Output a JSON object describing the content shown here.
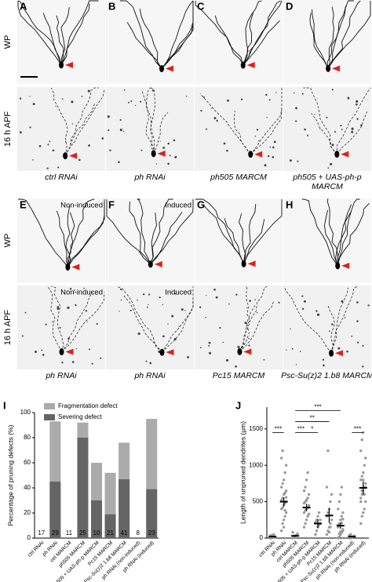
{
  "figure": {
    "blocks": [
      {
        "rows": [
          "WP",
          "16 h APF"
        ],
        "panels": [
          {
            "letter": "A",
            "caption": [
              "ctrl RNAi"
            ]
          },
          {
            "letter": "B",
            "caption": [
              "ph RNAi"
            ]
          },
          {
            "letter": "C",
            "caption": [
              "ph505 MARCM"
            ]
          },
          {
            "letter": "D",
            "caption": [
              "ph505 + UAS-ph-p",
              "MARCM"
            ]
          }
        ]
      },
      {
        "rows": [
          "WP",
          "16 h APF"
        ],
        "panels": [
          {
            "letter": "E",
            "notes": [
              "Non-induced",
              "Non-induced"
            ],
            "caption": [
              "ph RNAi"
            ]
          },
          {
            "letter": "F",
            "notes": [
              "Induced",
              "Induced"
            ],
            "caption": [
              "ph RNAi"
            ]
          },
          {
            "letter": "G",
            "caption": [
              "Pc15 MARCM"
            ]
          },
          {
            "letter": "H",
            "caption": [
              "Psc-Su(z)2 1.b8 MARCM"
            ]
          }
        ]
      }
    ]
  },
  "chart_data": [
    {
      "type": "stacked-bar",
      "panel": "I",
      "categories": [
        "ctrl RNAi",
        "ph RNAi",
        "ctrl MARCM",
        "ph505 MARCM",
        "ph505 + UAS-ph-p MARCM",
        "Pc15 MARCM",
        "Psc-Su(z)2 1.b8 MARCM",
        "ph RNAi (non-induced)",
        "ph RNAi (induced)"
      ],
      "series": [
        {
          "name": "Fragmentation defect",
          "color": "#ababab",
          "values": [
            0,
            48,
            0,
            12,
            30,
            33,
            29,
            0,
            56
          ]
        },
        {
          "name": "Severing defect",
          "color": "#656565",
          "values": [
            0,
            45,
            0,
            80,
            30,
            19,
            47,
            0,
            39
          ]
        }
      ],
      "n": [
        17,
        29,
        11,
        25,
        10,
        21,
        41,
        8,
        23
      ],
      "ylabel": "Percentage of pruning defects (%)",
      "ylim": [
        0,
        100
      ],
      "yticks": [
        0,
        20,
        40,
        60,
        80,
        100
      ]
    },
    {
      "type": "dot-plot",
      "panel": "J",
      "categories": [
        "ctrl RNAi",
        "ph RNAi",
        "ctrl MARCM",
        "ph505 MARCM",
        "ph505 + UAS-ph-p MARCM",
        "Pc15 MARCM",
        "Psc-Su(z)2 1.b8 MARCM",
        "ph RNAi (non-induced)",
        "ph RNAi (induced)"
      ],
      "points": [
        [
          0,
          0,
          5,
          10,
          20,
          30,
          40,
          15,
          50,
          8
        ],
        [
          100,
          200,
          250,
          300,
          350,
          400,
          420,
          450,
          480,
          500,
          520,
          550,
          600,
          620,
          650,
          700,
          750,
          800,
          900,
          1000,
          1100,
          1200,
          150,
          380,
          560
        ],
        [
          0,
          10,
          20,
          40,
          60,
          80,
          30,
          5
        ],
        [
          150,
          200,
          250,
          300,
          330,
          350,
          380,
          400,
          420,
          450,
          480,
          500,
          520,
          550,
          600,
          650,
          700,
          800,
          900,
          420
        ],
        [
          50,
          100,
          150,
          180,
          200,
          220,
          250,
          300,
          350,
          250
        ],
        [
          50,
          100,
          150,
          200,
          250,
          300,
          350,
          400,
          500,
          600,
          700,
          1200,
          80,
          150
        ],
        [
          0,
          20,
          50,
          80,
          100,
          150,
          200,
          250,
          300,
          350,
          400,
          500,
          600,
          700,
          120,
          180,
          60,
          90,
          210,
          260
        ],
        [
          0,
          0,
          10,
          20,
          30,
          40,
          50,
          10
        ],
        [
          200,
          300,
          350,
          400,
          500,
          550,
          600,
          650,
          700,
          750,
          800,
          850,
          900,
          1000,
          1100,
          1200,
          1350,
          1450,
          600,
          700,
          500,
          650,
          800
        ]
      ],
      "mean": [
        20,
        500,
        30,
        420,
        200,
        310,
        170,
        20,
        690
      ],
      "sem": [
        10,
        60,
        10,
        50,
        60,
        100,
        40,
        10,
        90
      ],
      "brackets": [
        {
          "from": 0,
          "to": 1,
          "y": 1450,
          "label": "***"
        },
        {
          "from": 2,
          "to": 3,
          "y": 1450,
          "label": "***"
        },
        {
          "from": 3,
          "to": 4,
          "y": 1450,
          "label": "*"
        },
        {
          "from": 2,
          "to": 5,
          "y": 1600,
          "label": "**"
        },
        {
          "from": 2,
          "to": 6,
          "y": 1750,
          "label": "***"
        },
        {
          "from": 7,
          "to": 8,
          "y": 1450,
          "label": "***"
        }
      ],
      "ylabel": "Length of unpruned dendrites (µm)",
      "ylim": [
        0,
        1800
      ],
      "yticks": [
        0,
        500,
        1000,
        1500
      ]
    }
  ]
}
